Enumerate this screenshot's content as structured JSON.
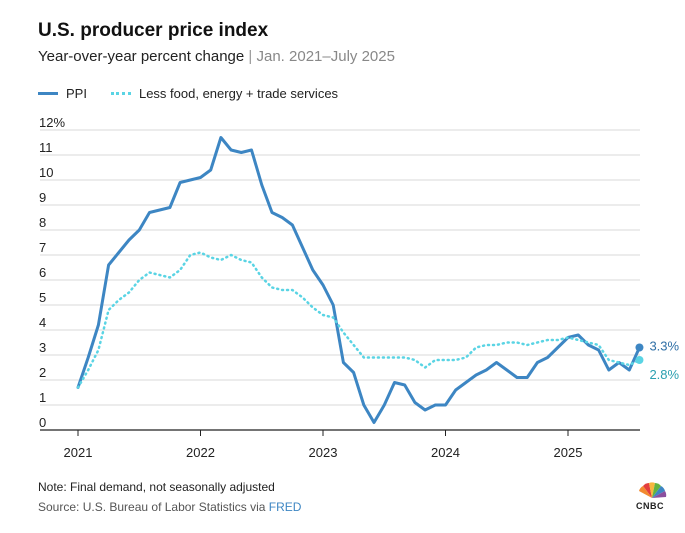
{
  "header": {
    "title": "U.S. producer price index",
    "subtitle_main": "Year-over-year percent change",
    "subtitle_sep": "|",
    "subtitle_range": "Jan. 2021–July 2025"
  },
  "footer": {
    "note": "Note: Final demand, not seasonally adjusted",
    "source_prefix": "Source: U.S. Bureau of Labor Statistics via",
    "source_link": "FRED",
    "logo_text": "CNBC"
  },
  "colors": {
    "ppi": "#3d86c3",
    "core": "#5ad4e4",
    "grid": "#d9d9d9",
    "axis": "#222222"
  },
  "chart_data": {
    "type": "line",
    "title": "U.S. producer price index",
    "subtitle": "Year-over-year percent change | Jan. 2021–July 2025",
    "xlabel": "",
    "ylabel": "",
    "x_start": "2021-01",
    "x_ticks": [
      "2021",
      "2022",
      "2023",
      "2024",
      "2025"
    ],
    "ylim": [
      0,
      12
    ],
    "y_ticks": [
      "0",
      "1",
      "2",
      "3",
      "4",
      "5",
      "6",
      "7",
      "8",
      "9",
      "10",
      "11",
      "12%"
    ],
    "grid": true,
    "legend": "top-left",
    "series": [
      {
        "name": "PPI",
        "style": "solid",
        "end_label": "3.3%",
        "values": [
          1.7,
          2.9,
          4.2,
          6.6,
          7.1,
          7.6,
          8.0,
          8.7,
          8.8,
          8.9,
          9.9,
          10.0,
          10.1,
          10.4,
          11.7,
          11.2,
          11.1,
          11.2,
          9.8,
          8.7,
          8.5,
          8.2,
          7.3,
          6.4,
          5.8,
          5.0,
          2.7,
          2.3,
          1.0,
          0.3,
          1.0,
          1.9,
          1.8,
          1.1,
          0.8,
          1.0,
          1.0,
          1.6,
          1.9,
          2.2,
          2.4,
          2.7,
          2.4,
          2.1,
          2.1,
          2.7,
          2.9,
          3.3,
          3.7,
          3.8,
          3.4,
          3.2,
          2.4,
          2.7,
          2.4,
          3.3
        ]
      },
      {
        "name": "Less food, energy + trade services",
        "style": "dotted",
        "end_label": "2.8%",
        "values": [
          1.7,
          2.4,
          3.2,
          4.8,
          5.2,
          5.5,
          6.0,
          6.3,
          6.2,
          6.1,
          6.4,
          7.0,
          7.1,
          6.9,
          6.8,
          7.0,
          6.8,
          6.7,
          6.1,
          5.7,
          5.6,
          5.6,
          5.3,
          4.9,
          4.6,
          4.5,
          3.9,
          3.4,
          2.9,
          2.9,
          2.9,
          2.9,
          2.9,
          2.8,
          2.5,
          2.8,
          2.8,
          2.8,
          2.9,
          3.3,
          3.4,
          3.4,
          3.5,
          3.5,
          3.4,
          3.5,
          3.6,
          3.6,
          3.7,
          3.6,
          3.5,
          3.4,
          2.8,
          2.7,
          2.6,
          2.8
        ]
      }
    ]
  }
}
